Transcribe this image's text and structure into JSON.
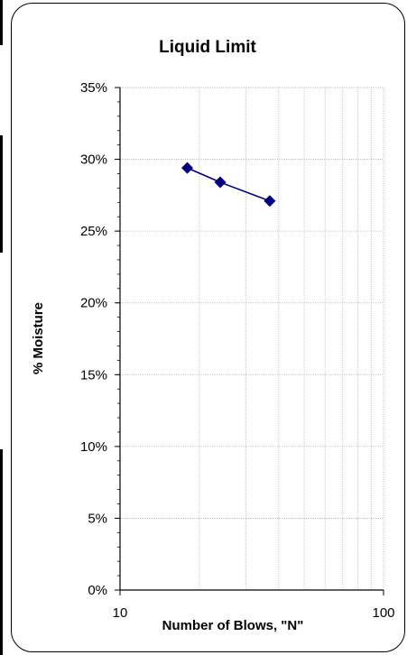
{
  "chart_data": {
    "type": "scatter",
    "title": "Liquid Limit",
    "xlabel": "Number of Blows, \"N\"",
    "ylabel": "% Moisture",
    "xscale": "log",
    "xlim": [
      10,
      100
    ],
    "ylim": [
      0,
      0.35
    ],
    "x_tick_labels": [
      "10",
      "100"
    ],
    "y_tick_labels": [
      "0%",
      "5%",
      "10%",
      "15%",
      "20%",
      "25%",
      "30%",
      "35%"
    ],
    "grid": true,
    "legend": "none",
    "series": [
      {
        "x": [
          18,
          24,
          37
        ],
        "y": [
          0.294,
          0.284,
          0.271
        ],
        "marker": "diamond",
        "color": "#000080"
      }
    ]
  }
}
